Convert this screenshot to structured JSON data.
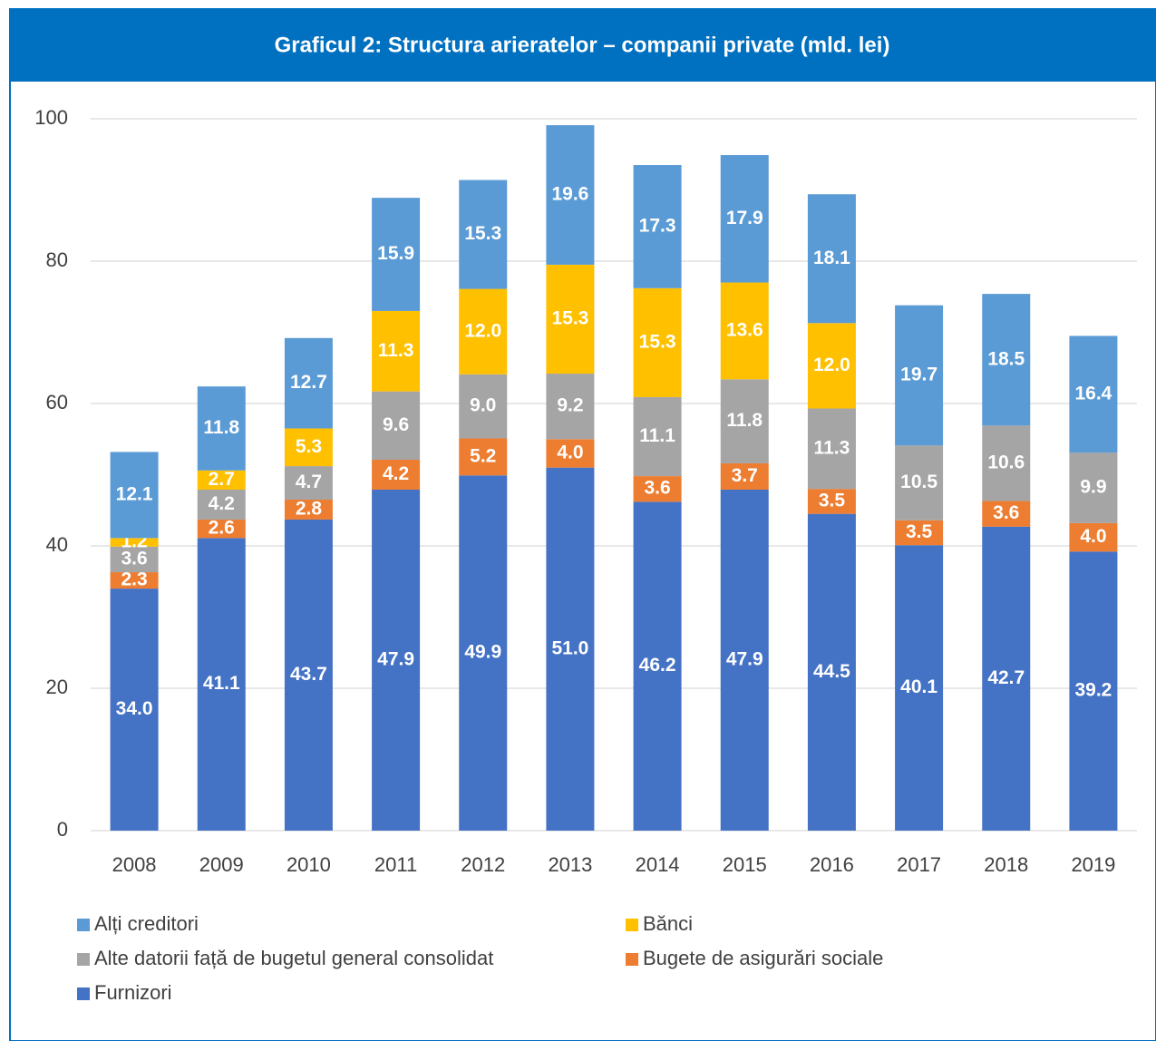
{
  "chart_data": {
    "type": "stacked_bar",
    "title": "Graficul 2: Structura arieratelor – companii private (mld. lei)",
    "categories": [
      "2008",
      "2009",
      "2010",
      "2011",
      "2012",
      "2013",
      "2014",
      "2015",
      "2016",
      "2017",
      "2018",
      "2019"
    ],
    "series": [
      {
        "name": "Furnizori",
        "color": "#4472c4",
        "values": [
          34.0,
          41.1,
          43.7,
          47.9,
          49.9,
          51.0,
          46.2,
          47.9,
          44.5,
          40.1,
          42.7,
          39.2
        ],
        "value_labels": [
          "34.0",
          "41.1",
          "43.7",
          "47.9",
          "49.9",
          "51.0",
          "46.2",
          "47.9",
          "44.5",
          "40.1",
          "42.7",
          "39.2"
        ]
      },
      {
        "name": "Bugete de asigurări sociale",
        "color": "#ed7d31",
        "values": [
          2.3,
          2.6,
          2.8,
          4.2,
          5.2,
          4.0,
          3.6,
          3.7,
          3.5,
          3.5,
          3.6,
          4.0
        ],
        "value_labels": [
          "2.3",
          "2.6",
          "2.8",
          "4.2",
          "5.2",
          "4.0",
          "3.6",
          "3.7",
          "3.5",
          "3.5",
          "3.6",
          "4.0"
        ]
      },
      {
        "name": "Alte datorii față de bugetul general consolidat",
        "color": "#a5a5a5",
        "values": [
          3.6,
          4.2,
          4.7,
          9.6,
          9.0,
          9.2,
          11.1,
          11.8,
          11.3,
          10.5,
          10.6,
          9.9
        ],
        "value_labels": [
          "3.6",
          "4.2",
          "4.7",
          "9.6",
          "9.0",
          "9.2",
          "11.1",
          "11.8",
          "11.3",
          "10.5",
          "10.6",
          "9.9"
        ]
      },
      {
        "name": "Bănci",
        "color": "#ffc000",
        "values": [
          1.2,
          2.7,
          5.3,
          11.3,
          12.0,
          15.3,
          15.3,
          13.6,
          12.0,
          null,
          null,
          null
        ],
        "value_labels": [
          "1.2",
          "2.7",
          "5.3",
          "11.3",
          "12.0",
          "15.3",
          "15.3",
          "13.6",
          "12.0",
          null,
          null,
          null
        ]
      },
      {
        "name": "Alți creditori",
        "color": "#5b9bd5",
        "values": [
          12.1,
          11.8,
          12.7,
          15.9,
          15.3,
          19.6,
          17.3,
          17.9,
          18.1,
          19.7,
          18.5,
          16.4
        ],
        "value_labels": [
          "12.1",
          "11.8",
          "12.7",
          "15.9",
          "15.3",
          "19.6",
          "17.3",
          "17.9",
          "18.1",
          "19.7",
          "18.5",
          "16.4"
        ]
      }
    ],
    "ylim": [
      0,
      100
    ],
    "yticks": [
      0,
      20,
      40,
      60,
      80,
      100
    ],
    "grid": true,
    "legend": "bottom"
  }
}
